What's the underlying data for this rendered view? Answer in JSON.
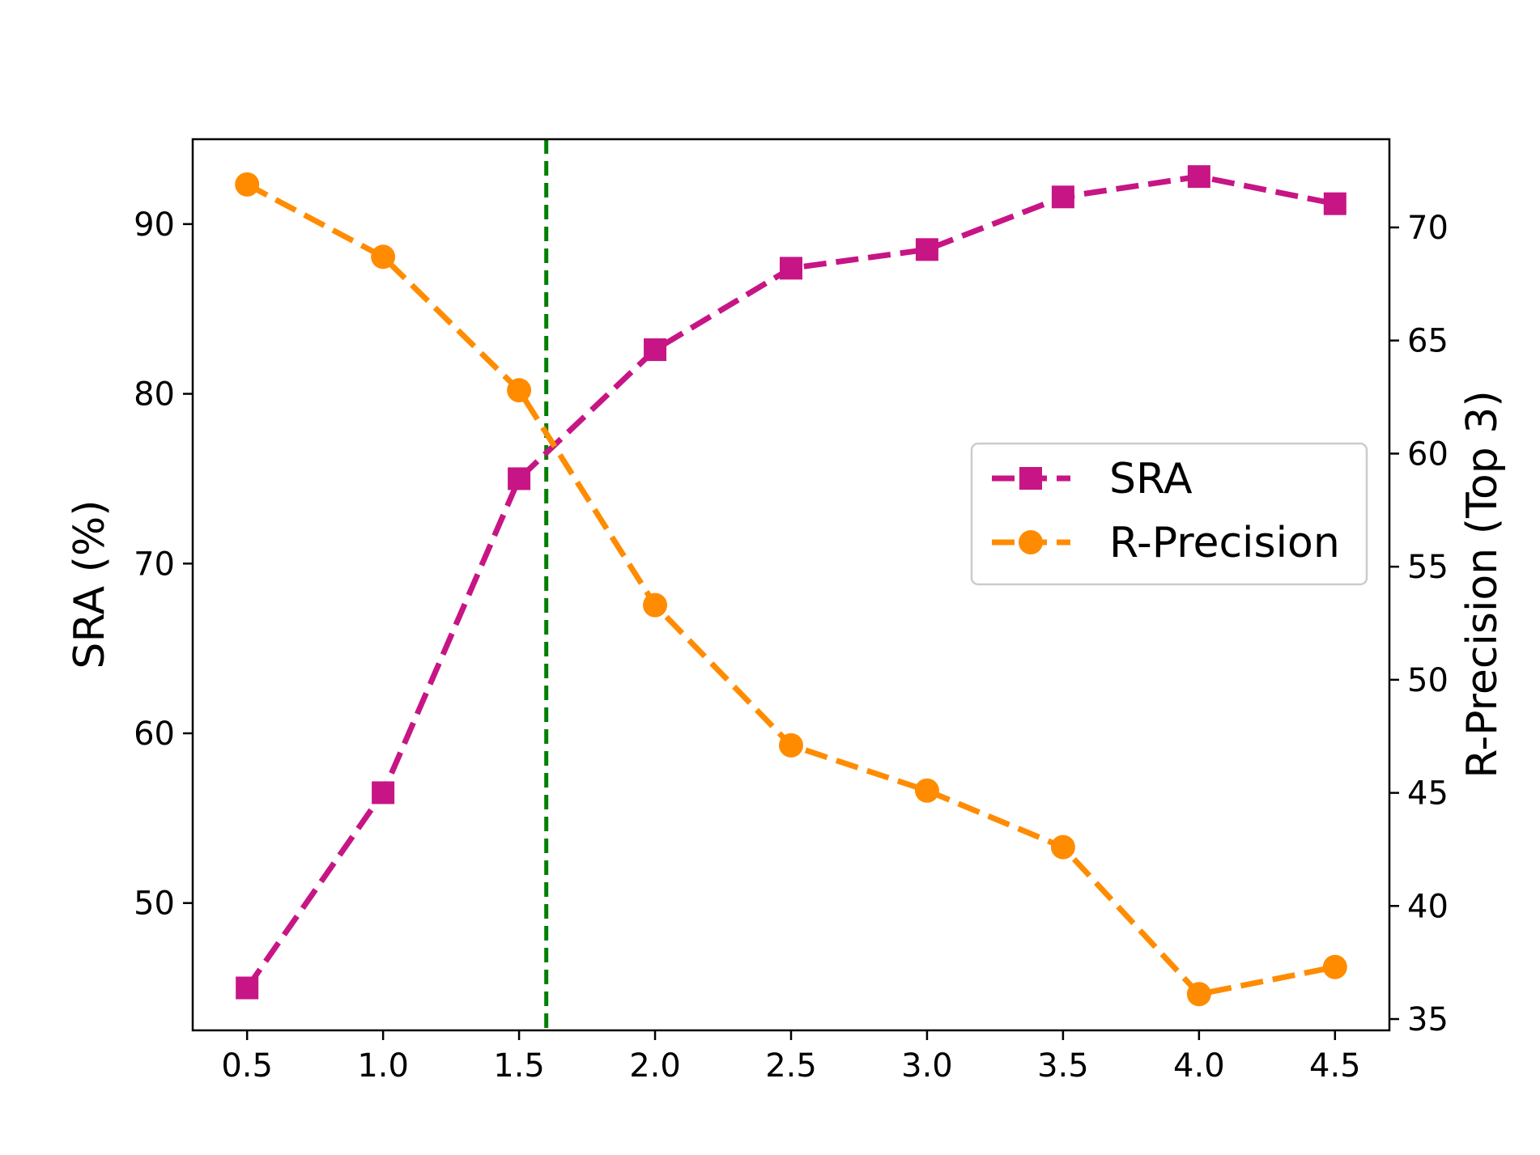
{
  "chart_data": {
    "type": "line",
    "title": "",
    "xlabel": "",
    "x": [
      0.5,
      1.0,
      1.5,
      2.0,
      2.5,
      3.0,
      3.5,
      4.0,
      4.5
    ],
    "x_ticks": [
      "0.5",
      "1.0",
      "1.5",
      "2.0",
      "2.5",
      "3.0",
      "3.5",
      "4.0",
      "4.5"
    ],
    "xlim": [
      0.3,
      4.7
    ],
    "y_left": {
      "label": "SRA (%)",
      "lim": [
        42.5,
        95
      ],
      "ticks": [
        50,
        60,
        70,
        80,
        90
      ],
      "tick_labels": [
        "50",
        "60",
        "70",
        "80",
        "90"
      ]
    },
    "y_right": {
      "label": "R-Precision (Top 3)",
      "lim": [
        34.5,
        73.9
      ],
      "ticks": [
        35,
        40,
        45,
        50,
        55,
        60,
        65,
        70
      ],
      "tick_labels": [
        "35",
        "40",
        "45",
        "50",
        "55",
        "60",
        "65",
        "70"
      ]
    },
    "series": [
      {
        "name": "SRA",
        "axis": "left",
        "marker": "square",
        "linestyle": "dashed",
        "color": "#C71585",
        "values": [
          45.0,
          56.5,
          75.0,
          82.6,
          87.4,
          88.5,
          91.6,
          92.8,
          91.2
        ]
      },
      {
        "name": "R-Precision",
        "axis": "right",
        "marker": "circle",
        "linestyle": "dashed",
        "color": "#FF8C00",
        "values": [
          71.9,
          68.7,
          62.8,
          53.3,
          47.1,
          45.1,
          42.6,
          36.1,
          37.3
        ]
      }
    ],
    "vertical_line": {
      "x": 1.6,
      "color": "#008000",
      "linestyle": "dashed"
    },
    "legend": {
      "position": "center-right",
      "entries": [
        "SRA",
        "R-Precision"
      ]
    },
    "grid": false
  }
}
